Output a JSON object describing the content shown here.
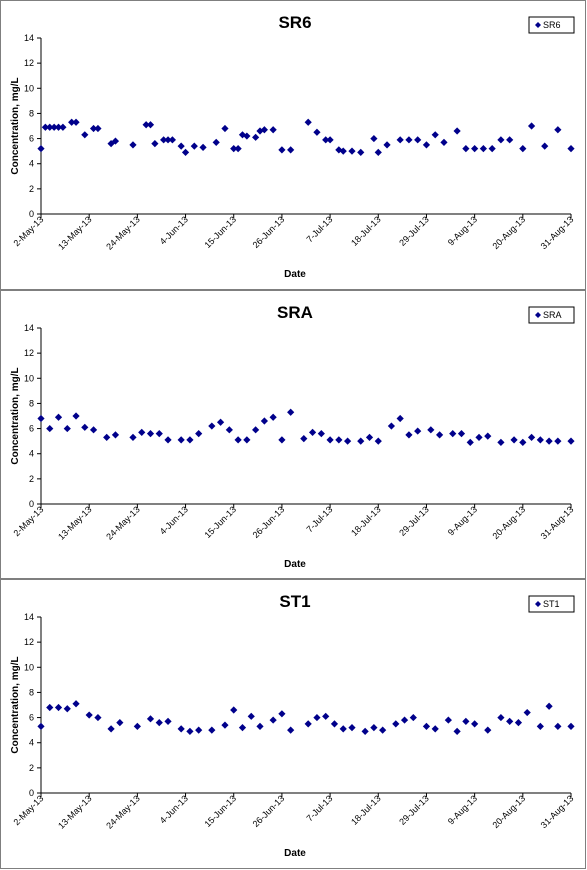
{
  "chart_data": [
    {
      "type": "scatter",
      "title": "SR6",
      "xlabel": "Date",
      "ylabel": "Concentration, mg/L",
      "ylim": [
        0,
        14
      ],
      "yticks": [
        "0",
        "2",
        "4",
        "6",
        "8",
        "10",
        "12",
        "14"
      ],
      "xticks": [
        "2-May-13",
        "13-May-13",
        "24-May-13",
        "4-Jun-13",
        "15-Jun-13",
        "26-Jun-13",
        "7-Jul-13",
        "18-Jul-13",
        "29-Jul-13",
        "9-Aug-13",
        "20-Aug-13",
        "31-Aug-13"
      ],
      "xlim": [
        "2013-05-02",
        "2013-08-31"
      ],
      "grid": false,
      "legend_position": "top-right",
      "series": [
        {
          "name": "SR6",
          "marker": "diamond",
          "color": "#00008b",
          "x": [
            "2013-05-02",
            "2013-05-03",
            "2013-05-04",
            "2013-05-05",
            "2013-05-06",
            "2013-05-07",
            "2013-05-09",
            "2013-05-10",
            "2013-05-12",
            "2013-05-14",
            "2013-05-15",
            "2013-05-18",
            "2013-05-19",
            "2013-05-23",
            "2013-05-26",
            "2013-05-27",
            "2013-05-28",
            "2013-05-30",
            "2013-05-31",
            "2013-06-01",
            "2013-06-03",
            "2013-06-04",
            "2013-06-06",
            "2013-06-08",
            "2013-06-11",
            "2013-06-13",
            "2013-06-15",
            "2013-06-16",
            "2013-06-17",
            "2013-06-18",
            "2013-06-20",
            "2013-06-21",
            "2013-06-22",
            "2013-06-24",
            "2013-06-26",
            "2013-06-28",
            "2013-07-02",
            "2013-07-04",
            "2013-07-06",
            "2013-07-07",
            "2013-07-09",
            "2013-07-10",
            "2013-07-12",
            "2013-07-14",
            "2013-07-17",
            "2013-07-18",
            "2013-07-20",
            "2013-07-23",
            "2013-07-25",
            "2013-07-27",
            "2013-07-29",
            "2013-07-31",
            "2013-08-02",
            "2013-08-05",
            "2013-08-07",
            "2013-08-09",
            "2013-08-11",
            "2013-08-13",
            "2013-08-15",
            "2013-08-17",
            "2013-08-20",
            "2013-08-22",
            "2013-08-25",
            "2013-08-28",
            "2013-08-31"
          ],
          "y": [
            5.2,
            6.9,
            6.9,
            6.9,
            6.9,
            6.9,
            7.3,
            7.3,
            6.3,
            6.8,
            6.8,
            5.6,
            5.8,
            5.5,
            7.1,
            7.1,
            5.6,
            5.9,
            5.9,
            5.9,
            5.4,
            4.9,
            5.4,
            5.3,
            5.7,
            6.8,
            5.2,
            5.2,
            6.3,
            6.2,
            6.1,
            6.6,
            6.7,
            6.7,
            5.1,
            5.1,
            7.3,
            6.5,
            5.9,
            5.9,
            5.1,
            5.0,
            5.0,
            4.9,
            6.0,
            4.9,
            5.5,
            5.9,
            5.9,
            5.9,
            5.5,
            6.3,
            5.7,
            6.6,
            5.2,
            5.2,
            5.2,
            5.2,
            5.9,
            5.9,
            5.2,
            7.0,
            5.4,
            6.7,
            5.2
          ]
        }
      ]
    },
    {
      "type": "scatter",
      "title": "SRA",
      "xlabel": "Date",
      "ylabel": "Concentration, mg/L",
      "ylim": [
        0,
        14
      ],
      "yticks": [
        "0",
        "2",
        "4",
        "6",
        "8",
        "10",
        "12",
        "14"
      ],
      "xticks": [
        "2-May-13",
        "13-May-13",
        "24-May-13",
        "4-Jun-13",
        "15-Jun-13",
        "26-Jun-13",
        "7-Jul-13",
        "18-Jul-13",
        "29-Jul-13",
        "9-Aug-13",
        "20-Aug-13",
        "31-Aug-13"
      ],
      "xlim": [
        "2013-05-02",
        "2013-08-31"
      ],
      "grid": false,
      "legend_position": "top-right",
      "series": [
        {
          "name": "SRA",
          "marker": "diamond",
          "color": "#00008b",
          "x": [
            "2013-05-02",
            "2013-05-04",
            "2013-05-06",
            "2013-05-08",
            "2013-05-10",
            "2013-05-12",
            "2013-05-14",
            "2013-05-17",
            "2013-05-19",
            "2013-05-23",
            "2013-05-25",
            "2013-05-27",
            "2013-05-29",
            "2013-05-31",
            "2013-06-03",
            "2013-06-05",
            "2013-06-07",
            "2013-06-10",
            "2013-06-12",
            "2013-06-14",
            "2013-06-16",
            "2013-06-18",
            "2013-06-20",
            "2013-06-22",
            "2013-06-24",
            "2013-06-26",
            "2013-06-28",
            "2013-07-01",
            "2013-07-03",
            "2013-07-05",
            "2013-07-07",
            "2013-07-09",
            "2013-07-11",
            "2013-07-14",
            "2013-07-16",
            "2013-07-18",
            "2013-07-21",
            "2013-07-23",
            "2013-07-25",
            "2013-07-27",
            "2013-07-30",
            "2013-08-01",
            "2013-08-04",
            "2013-08-06",
            "2013-08-08",
            "2013-08-10",
            "2013-08-12",
            "2013-08-15",
            "2013-08-18",
            "2013-08-20",
            "2013-08-22",
            "2013-08-24",
            "2013-08-26",
            "2013-08-28",
            "2013-08-31"
          ],
          "y": [
            6.8,
            6.0,
            6.9,
            6.0,
            7.0,
            6.1,
            5.9,
            5.3,
            5.5,
            5.3,
            5.7,
            5.6,
            5.6,
            5.1,
            5.1,
            5.1,
            5.6,
            6.2,
            6.5,
            5.9,
            5.1,
            5.1,
            5.9,
            6.6,
            6.9,
            5.1,
            7.3,
            5.2,
            5.7,
            5.6,
            5.1,
            5.1,
            5.0,
            5.0,
            5.3,
            5.0,
            6.2,
            6.8,
            5.5,
            5.8,
            5.9,
            5.5,
            5.6,
            5.6,
            4.9,
            5.3,
            5.4,
            4.9,
            5.1,
            4.9,
            5.3,
            5.1,
            5.0,
            5.0,
            5.0
          ]
        }
      ]
    },
    {
      "type": "scatter",
      "title": "ST1",
      "xlabel": "Date",
      "ylabel": "Concentration, mg/L",
      "ylim": [
        0,
        14
      ],
      "yticks": [
        "0",
        "2",
        "4",
        "6",
        "8",
        "10",
        "12",
        "14"
      ],
      "xticks": [
        "2-May-13",
        "13-May-13",
        "24-May-13",
        "4-Jun-13",
        "15-Jun-13",
        "26-Jun-13",
        "7-Jul-13",
        "18-Jul-13",
        "29-Jul-13",
        "9-Aug-13",
        "20-Aug-13",
        "31-Aug-13"
      ],
      "xlim": [
        "2013-05-02",
        "2013-08-31"
      ],
      "grid": false,
      "legend_position": "top-right",
      "series": [
        {
          "name": "ST1",
          "marker": "diamond",
          "color": "#00008b",
          "x": [
            "2013-05-02",
            "2013-05-04",
            "2013-05-06",
            "2013-05-08",
            "2013-05-10",
            "2013-05-13",
            "2013-05-15",
            "2013-05-18",
            "2013-05-20",
            "2013-05-24",
            "2013-05-27",
            "2013-05-29",
            "2013-05-31",
            "2013-06-03",
            "2013-06-05",
            "2013-06-07",
            "2013-06-10",
            "2013-06-13",
            "2013-06-15",
            "2013-06-17",
            "2013-06-19",
            "2013-06-21",
            "2013-06-24",
            "2013-06-26",
            "2013-06-28",
            "2013-07-02",
            "2013-07-04",
            "2013-07-06",
            "2013-07-08",
            "2013-07-10",
            "2013-07-12",
            "2013-07-15",
            "2013-07-17",
            "2013-07-19",
            "2013-07-22",
            "2013-07-24",
            "2013-07-26",
            "2013-07-29",
            "2013-07-31",
            "2013-08-03",
            "2013-08-05",
            "2013-08-07",
            "2013-08-09",
            "2013-08-12",
            "2013-08-15",
            "2013-08-17",
            "2013-08-19",
            "2013-08-21",
            "2013-08-24",
            "2013-08-26",
            "2013-08-28",
            "2013-08-31"
          ],
          "y": [
            5.3,
            6.8,
            6.8,
            6.7,
            7.1,
            6.2,
            6.0,
            5.1,
            5.6,
            5.3,
            5.9,
            5.6,
            5.7,
            5.1,
            4.9,
            5.0,
            5.0,
            5.4,
            6.6,
            5.2,
            6.1,
            5.3,
            5.8,
            6.3,
            5.0,
            5.5,
            6.0,
            6.1,
            5.5,
            5.1,
            5.2,
            4.9,
            5.2,
            5.0,
            5.5,
            5.8,
            6.0,
            5.3,
            5.1,
            5.8,
            4.9,
            5.7,
            5.5,
            5.0,
            6.0,
            5.7,
            5.6,
            6.4,
            5.3,
            6.9,
            5.3,
            5.3
          ]
        }
      ]
    }
  ]
}
